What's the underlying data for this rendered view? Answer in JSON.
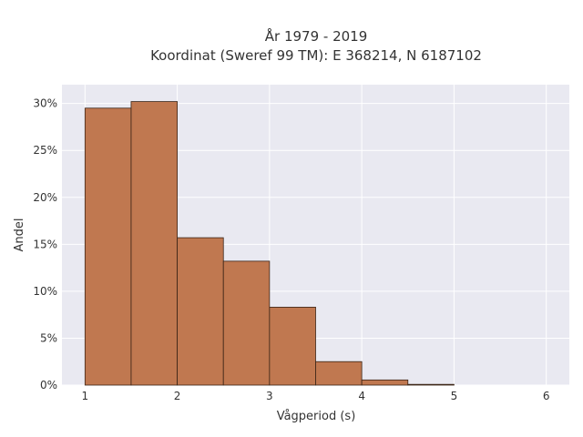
{
  "chart_data": {
    "type": "bar",
    "title_line1": "År 1979 - 2019",
    "title_line2": "Koordinat (Sweref 99 TM): E 368214, N 6187102",
    "xlabel": "Vågperiod (s)",
    "ylabel": "Andel",
    "bin_edges": [
      1,
      1.5,
      2,
      2.5,
      3,
      3.5,
      4,
      4.5,
      5
    ],
    "values": [
      29.5,
      30.2,
      15.7,
      13.2,
      8.3,
      2.5,
      0.55,
      0.08
    ],
    "xlim": [
      0.75,
      6.25
    ],
    "ylim": [
      0,
      32
    ],
    "x_ticks": [
      1,
      2,
      3,
      4,
      5,
      6
    ],
    "y_ticks": [
      0,
      5,
      10,
      15,
      20,
      25,
      30
    ],
    "y_tick_labels": [
      "0%",
      "5%",
      "10%",
      "15%",
      "20%",
      "25%",
      "30%"
    ],
    "bar_color": "#c07850",
    "bar_edge_color": "#3a2416",
    "plot_background": "#e9e9f1",
    "grid": true
  }
}
